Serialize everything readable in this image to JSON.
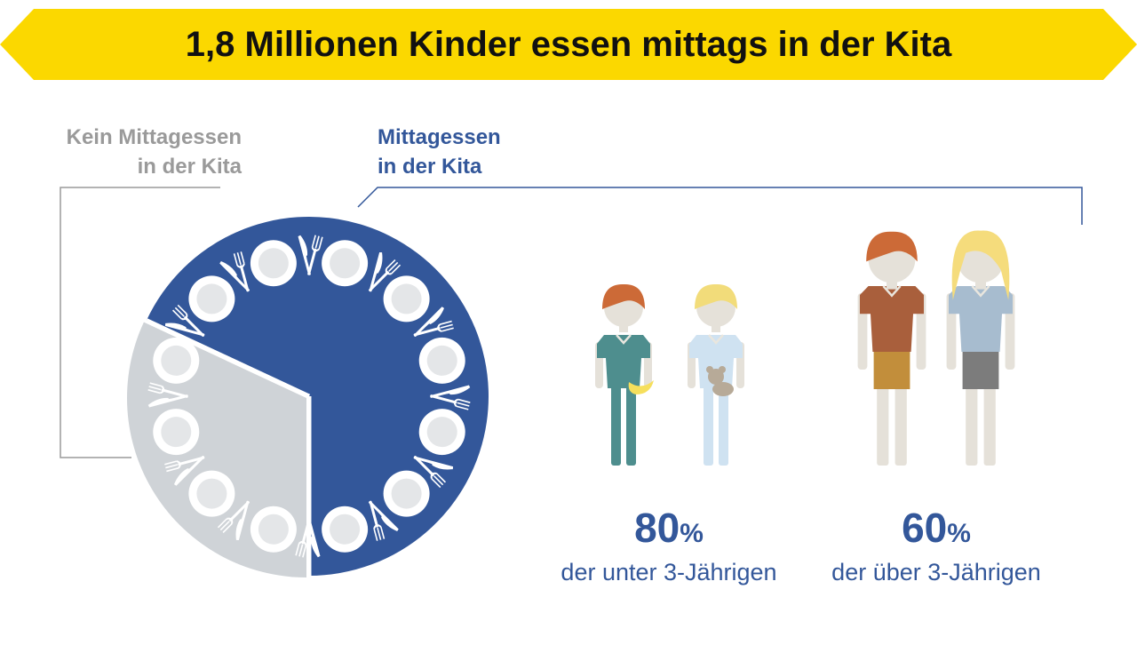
{
  "title": "1,8 Millionen Kinder essen mittags in der Kita",
  "colors": {
    "banner": "#fbd800",
    "blue": "#33579a",
    "grey": "#cfd3d7",
    "grey_text": "#9a9a9a",
    "plate": "#ffffff",
    "plate_inner": "#e4e6e8"
  },
  "labels": {
    "no_lunch_line1": "Kein Mittagessen",
    "no_lunch_line2": "in der Kita",
    "lunch_line1": "Mittagessen",
    "lunch_line2": "in der Kita"
  },
  "chart_data": {
    "type": "pie",
    "title": "1,8 Millionen Kinder essen mittags in der Kita",
    "slices": [
      {
        "name": "Mittagessen in der Kita",
        "place_settings": 9,
        "color": "#33579a"
      },
      {
        "name": "Kein Mittagessen in der Kita",
        "place_settings": 3,
        "color": "#cfd3d7"
      }
    ]
  },
  "stats": [
    {
      "value": "80",
      "unit": "%",
      "description": "der unter 3-Jährigen"
    },
    {
      "value": "60",
      "unit": "%",
      "description": "der über 3-Jährigen"
    }
  ]
}
